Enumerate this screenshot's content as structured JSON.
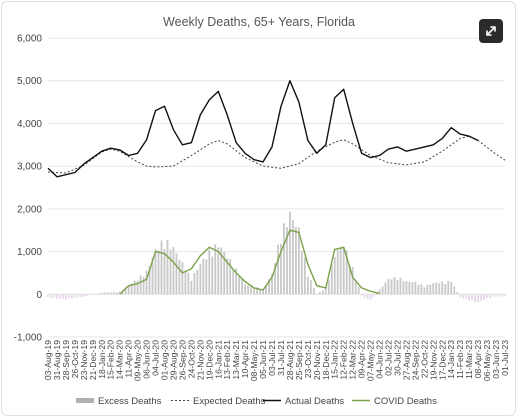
{
  "chart_data": {
    "type": "line",
    "title": "Weekly Deaths, 65+ Years, Florida",
    "ylim": [
      -1000,
      6000
    ],
    "yticks": [
      -1000,
      0,
      1000,
      2000,
      3000,
      4000,
      5000,
      6000
    ],
    "ytick_labels": [
      "-1,000",
      "0",
      "1,000",
      "2,000",
      "3,000",
      "4,000",
      "5,000",
      "6,000"
    ],
    "grid": true,
    "legend_position": "bottom",
    "x_labels": [
      "03-Aug-19",
      "31-Aug-19",
      "28-Sep-19",
      "26-Oct-19",
      "23-Nov-19",
      "21-Dec-19",
      "18-Jan-20",
      "15-Feb-20",
      "14-Mar-20",
      "11-Apr-20",
      "09-May-20",
      "06-Jun-20",
      "04-Jul-20",
      "01-Aug-20",
      "29-Aug-20",
      "26-Sep-20",
      "24-Oct-20",
      "21-Nov-20",
      "19-Dec-20",
      "16-Jan-21",
      "13-Feb-21",
      "13-Mar-21",
      "10-Apr-21",
      "08-May-21",
      "05-Jun-21",
      "03-Jul-21",
      "31-Jul-21",
      "28-Aug-21",
      "25-Sep-21",
      "23-Oct-21",
      "20-Nov-21",
      "18-Dec-21",
      "15-Jan-22",
      "12-Feb-22",
      "12-Mar-22",
      "09-Apr-22",
      "07-May-22",
      "04-Jun-22",
      "02-Jul-22",
      "30-Jul-22",
      "27-Aug-22",
      "24-Sep-22",
      "22-Oct-22",
      "19-Nov-22",
      "17-Dec-22",
      "14-Jan-23",
      "11-Feb-23",
      "11-Mar-23",
      "08-Apr-23",
      "06-May-23",
      "03-Jun-23",
      "01-Jul-23"
    ],
    "series": [
      {
        "name": "Excess Deaths",
        "style": "bars",
        "color": "#c8c8c8",
        "neg_color": "#e6d6ea",
        "points": [
          [
            0,
            -80
          ],
          [
            2,
            -120
          ],
          [
            4,
            -60
          ],
          [
            6,
            40
          ],
          [
            8,
            60
          ],
          [
            10,
            380
          ],
          [
            11,
            560
          ],
          [
            12,
            1100
          ],
          [
            13,
            1350
          ],
          [
            14,
            1150
          ],
          [
            16,
            380
          ],
          [
            17,
            760
          ],
          [
            18,
            1050
          ],
          [
            19,
            1250
          ],
          [
            20,
            950
          ],
          [
            22,
            250
          ],
          [
            24,
            120
          ],
          [
            25,
            500
          ],
          [
            26,
            1500
          ],
          [
            27,
            2000
          ],
          [
            28,
            1600
          ],
          [
            29,
            500
          ],
          [
            30,
            0
          ],
          [
            31,
            160
          ],
          [
            32,
            1000
          ],
          [
            33,
            1250
          ],
          [
            34,
            640
          ],
          [
            35,
            -50
          ],
          [
            36,
            -150
          ],
          [
            38,
            380
          ],
          [
            39,
            420
          ],
          [
            40,
            320
          ],
          [
            41,
            300
          ],
          [
            42,
            200
          ],
          [
            43,
            280
          ],
          [
            44,
            300
          ],
          [
            45,
            320
          ],
          [
            46,
            -80
          ],
          [
            47,
            -150
          ],
          [
            48,
            -200
          ],
          [
            49,
            -100
          ],
          [
            50,
            -60
          ],
          [
            51,
            -40
          ]
        ]
      },
      {
        "name": "Expected Deaths",
        "style": "dotted",
        "color": "#444444",
        "points": [
          [
            0,
            2860
          ],
          [
            2,
            2840
          ],
          [
            4,
            3020
          ],
          [
            6,
            3330
          ],
          [
            7,
            3400
          ],
          [
            8,
            3350
          ],
          [
            10,
            3100
          ],
          [
            11,
            3000
          ],
          [
            12,
            2980
          ],
          [
            14,
            3000
          ],
          [
            16,
            3250
          ],
          [
            18,
            3520
          ],
          [
            19,
            3600
          ],
          [
            20,
            3520
          ],
          [
            22,
            3200
          ],
          [
            24,
            3000
          ],
          [
            26,
            2950
          ],
          [
            28,
            3060
          ],
          [
            30,
            3350
          ],
          [
            32,
            3560
          ],
          [
            33,
            3620
          ],
          [
            34,
            3520
          ],
          [
            36,
            3250
          ],
          [
            38,
            3080
          ],
          [
            40,
            3030
          ],
          [
            42,
            3100
          ],
          [
            44,
            3350
          ],
          [
            46,
            3650
          ],
          [
            47,
            3700
          ],
          [
            48,
            3600
          ],
          [
            50,
            3280
          ],
          [
            51,
            3140
          ]
        ]
      },
      {
        "name": "Actual Deaths",
        "style": "line",
        "color": "#111111",
        "points": [
          [
            0,
            2950
          ],
          [
            1,
            2750
          ],
          [
            3,
            2850
          ],
          [
            4,
            3050
          ],
          [
            5,
            3200
          ],
          [
            6,
            3350
          ],
          [
            7,
            3420
          ],
          [
            8,
            3380
          ],
          [
            9,
            3250
          ],
          [
            10,
            3300
          ],
          [
            11,
            3620
          ],
          [
            12,
            4300
          ],
          [
            13,
            4400
          ],
          [
            14,
            3850
          ],
          [
            15,
            3500
          ],
          [
            16,
            3550
          ],
          [
            17,
            4200
          ],
          [
            18,
            4550
          ],
          [
            19,
            4750
          ],
          [
            20,
            4200
          ],
          [
            21,
            3550
          ],
          [
            22,
            3300
          ],
          [
            23,
            3150
          ],
          [
            24,
            3100
          ],
          [
            25,
            3450
          ],
          [
            26,
            4400
          ],
          [
            27,
            5000
          ],
          [
            28,
            4500
          ],
          [
            29,
            3600
          ],
          [
            30,
            3300
          ],
          [
            31,
            3500
          ],
          [
            32,
            4600
          ],
          [
            33,
            4800
          ],
          [
            34,
            4000
          ],
          [
            35,
            3300
          ],
          [
            36,
            3200
          ],
          [
            37,
            3250
          ],
          [
            38,
            3400
          ],
          [
            39,
            3450
          ],
          [
            40,
            3350
          ],
          [
            41,
            3400
          ],
          [
            42,
            3450
          ],
          [
            43,
            3500
          ],
          [
            44,
            3650
          ],
          [
            45,
            3900
          ],
          [
            46,
            3750
          ],
          [
            47,
            3700
          ],
          [
            48,
            3600
          ]
        ]
      },
      {
        "name": "COVID Deaths",
        "style": "line",
        "color": "#7ca24a",
        "points": [
          [
            8,
            0
          ],
          [
            9,
            200
          ],
          [
            10,
            250
          ],
          [
            11,
            350
          ],
          [
            12,
            1000
          ],
          [
            13,
            950
          ],
          [
            14,
            750
          ],
          [
            15,
            500
          ],
          [
            16,
            600
          ],
          [
            17,
            900
          ],
          [
            18,
            1100
          ],
          [
            19,
            1000
          ],
          [
            20,
            750
          ],
          [
            21,
            500
          ],
          [
            22,
            300
          ],
          [
            23,
            150
          ],
          [
            24,
            100
          ],
          [
            25,
            400
          ],
          [
            26,
            1000
          ],
          [
            27,
            1500
          ],
          [
            28,
            1450
          ],
          [
            29,
            700
          ],
          [
            30,
            200
          ],
          [
            31,
            150
          ],
          [
            32,
            1050
          ],
          [
            33,
            1100
          ],
          [
            34,
            400
          ],
          [
            35,
            150
          ],
          [
            36,
            70
          ],
          [
            37,
            20
          ]
        ]
      }
    ],
    "legend": [
      {
        "label": "Excess Deaths",
        "symbol": "bar"
      },
      {
        "label": "Expected Deaths",
        "symbol": "dotted"
      },
      {
        "label": "Actual Deaths",
        "symbol": "line-black"
      },
      {
        "label": "COVID Deaths",
        "symbol": "line-green"
      }
    ]
  },
  "icons": {
    "expand": "expand-arrows-icon"
  }
}
